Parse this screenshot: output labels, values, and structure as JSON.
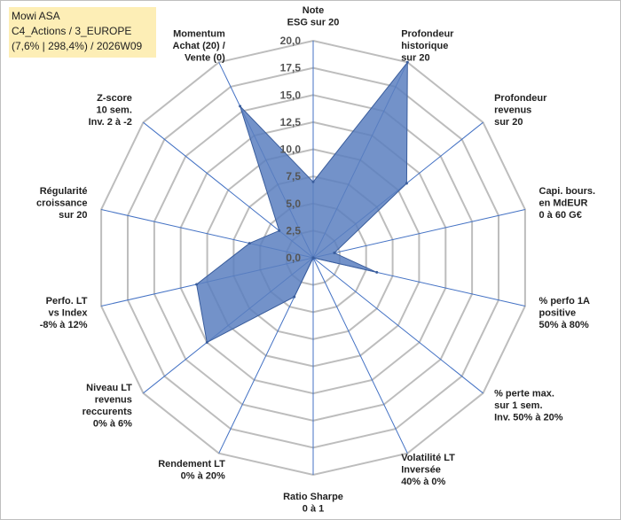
{
  "title_box": {
    "line1": "Mowi ASA",
    "line2": "C4_Actions / 3_EUROPE",
    "line3": "(7,6% | 298,4%) / 2026W09"
  },
  "chart_data": {
    "type": "radar",
    "ylim": [
      0,
      20
    ],
    "ticks": [
      "0,0",
      "2,5",
      "5,0",
      "7,5",
      "10,0",
      "12,5",
      "15,0",
      "17,5",
      "20,0"
    ],
    "tick_values": [
      0,
      2.5,
      5,
      7.5,
      10,
      12.5,
      15,
      17.5,
      20
    ],
    "grid": true,
    "categories": [
      "Note|ESG sur 20",
      "Profondeur|historique|sur 20",
      "Profondeur|revenus|sur 20",
      "Capi. bours.|en MdEUR|0 à 60 G€",
      "% perfo 1A|positive|50% à 80%",
      "% perte max.|sur 1 sem.|Inv. 50% à 20%",
      "Volatilité LT|Inversée|40% à 0%",
      "Ratio Sharpe|0 à 1",
      "Rendement LT|0% à 20%",
      "Niveau LT|revenus|reccurents|0% à 6%",
      "Perfo. LT|vs Index|-8% à 12%",
      "Régularité|croissance|sur 20",
      "Z-score|10 sem.|Inv. 2 à -2",
      "Momentum|Achat (20) /|Vente (0)"
    ],
    "series": [
      {
        "values": [
          7.0,
          20.0,
          11.0,
          2.0,
          6.0,
          0.0,
          0.0,
          0.0,
          4.0,
          12.5,
          11.0,
          6.0,
          4.0,
          15.5
        ]
      }
    ],
    "colors": {
      "fill": "#5b7fbf",
      "stroke": "#3a5d9c",
      "grid": "#bdbdbd",
      "spoke": "#4472c4"
    }
  }
}
